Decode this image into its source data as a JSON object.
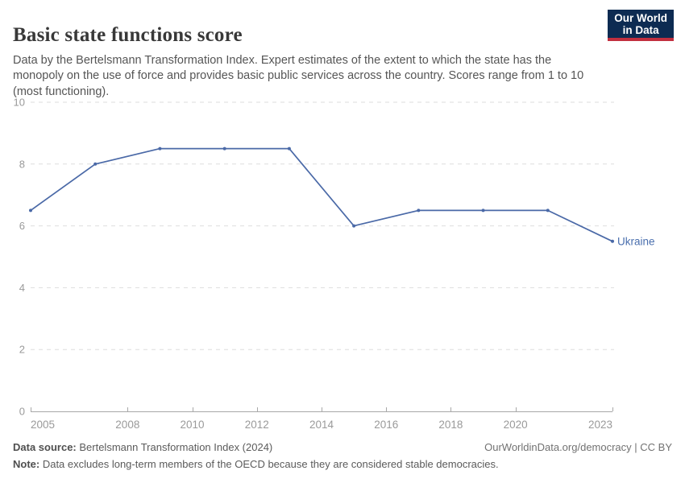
{
  "header": {
    "title": "Basic state functions score",
    "subtitle": "Data by the Bertelsmann Transformation Index. Expert estimates of the extent to which the state has the monopoly on the use of force and provides basic public services across the country. Scores range from 1 to 10 (most functioning).",
    "logo": {
      "line1": "Our World",
      "line2": "in Data"
    }
  },
  "chart_data": {
    "type": "line",
    "title": "Basic state functions score",
    "series": [
      {
        "name": "Ukraine",
        "x": [
          2005,
          2007,
          2009,
          2011,
          2013,
          2015,
          2017,
          2019,
          2021,
          2023
        ],
        "values": [
          6.5,
          8,
          8.5,
          8.5,
          8.5,
          6,
          6.5,
          6.5,
          6.5,
          5.5
        ]
      }
    ],
    "xlim": [
      2005,
      2023
    ],
    "ylim": [
      0,
      10
    ],
    "xticks": [
      2005,
      2008,
      2010,
      2012,
      2014,
      2016,
      2018,
      2020,
      2023
    ],
    "yticks": [
      0,
      2,
      4,
      6,
      8,
      10
    ],
    "xlabel": "",
    "ylabel": "",
    "grid": "horizontal-dashed",
    "legend_position": "end-of-line-label",
    "end_label": "Ukraine"
  },
  "footer": {
    "source_label": "Data source:",
    "source_text": " Bertelsmann Transformation Index (2024)",
    "note_label": "Note:",
    "note_text": " Data excludes long-term members of the OECD because they are considered stable democracies.",
    "right_text": "OurWorldinData.org/democracy | CC BY"
  },
  "colors": {
    "line": "#4a69a7",
    "entity_label": "#4a6fae",
    "title_text": "#383838",
    "subtitle_text": "#555555",
    "axis_text": "#9a9a9a",
    "gridline": "#dddddd",
    "axis_line": "#a8a8a8",
    "logo_bg": "#0d2b52",
    "logo_accent": "#c22f3f"
  }
}
